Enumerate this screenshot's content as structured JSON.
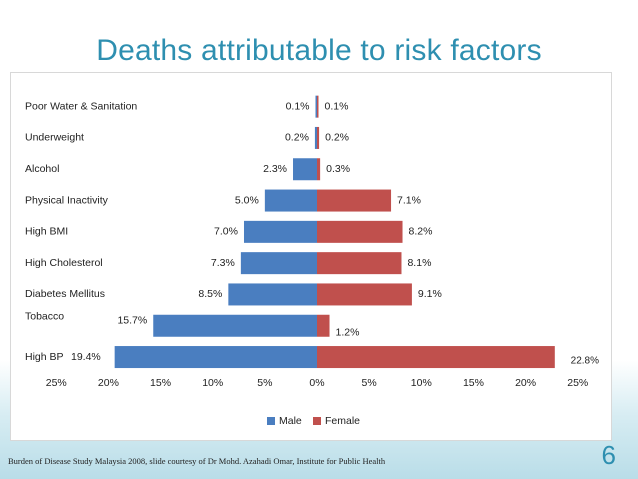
{
  "title": "Deaths attributable to risk factors",
  "source": "Burden of Disease Study Malaysia 2008, slide courtesy of Dr Mohd. Azahadi Omar, Institute for Public Health",
  "slide_number": "6",
  "colors": {
    "male": "#4a7ec0",
    "female": "#c0504d",
    "title": "#2e8fb0"
  },
  "chart_data": {
    "type": "bar",
    "orientation": "horizontal-butterfly",
    "title": "Deaths attributable to risk factors",
    "categories": [
      "Poor Water & Sanitation",
      "Underweight",
      "Alcohol",
      "Physical Inactivity",
      "High BMI",
      "High Cholesterol",
      "Diabetes Mellitus",
      "Tobacco",
      "High BP"
    ],
    "series": [
      {
        "name": "Male",
        "direction": "left",
        "values": [
          0.1,
          0.2,
          2.3,
          5.0,
          7.0,
          7.3,
          8.5,
          15.7,
          19.4
        ],
        "labels": [
          "0.1%",
          "0.2%",
          "2.3%",
          "5.0%",
          "7.0%",
          "7.3%",
          "8.5%",
          "15.7%",
          "19.4%"
        ]
      },
      {
        "name": "Female",
        "direction": "right",
        "values": [
          0.1,
          0.2,
          0.3,
          7.1,
          8.2,
          8.1,
          9.1,
          1.2,
          22.8
        ],
        "labels": [
          "0.1%",
          "0.2%",
          "0.3%",
          "7.1%",
          "8.2%",
          "8.1%",
          "9.1%",
          "1.2%",
          "22.8%"
        ]
      }
    ],
    "xaxis": {
      "ticks": [
        -25,
        -20,
        -15,
        -10,
        -5,
        0,
        5,
        10,
        15,
        20,
        25
      ],
      "tick_labels": [
        "25%",
        "20%",
        "15%",
        "10%",
        "5%",
        "0%",
        "5%",
        "10%",
        "15%",
        "20%",
        "25%"
      ],
      "range": [
        -25,
        25
      ]
    },
    "legend": {
      "position": "bottom",
      "entries": [
        "Male",
        "Female"
      ]
    }
  }
}
